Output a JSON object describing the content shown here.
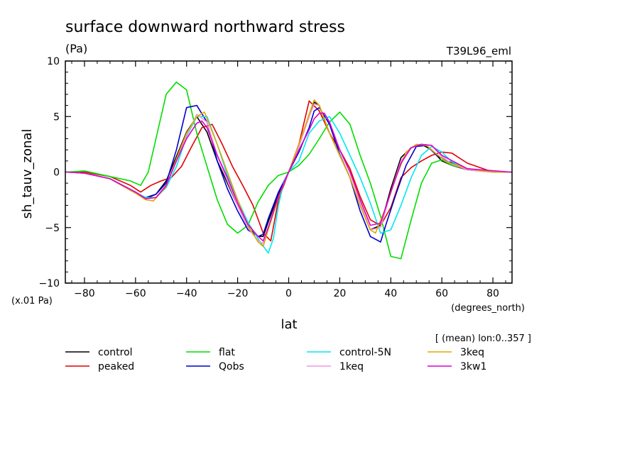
{
  "chart_data": {
    "type": "line",
    "title": "surface downward northward stress",
    "units": "(Pa)",
    "experiment": "T39L96_eml",
    "ylabel": "sh_tauv_zonal",
    "ylabel_scale": "(x.01 Pa)",
    "xlabel": "lat",
    "x_units": "(degrees_north)",
    "averaging_note": "[ (mean) lon:0..357 ]",
    "xlim": [
      -87.5,
      87.5
    ],
    "ylim": [
      -10,
      10
    ],
    "x_ticks": [
      -80,
      -60,
      -40,
      -20,
      0,
      20,
      40,
      60,
      80
    ],
    "x_tick_labels": [
      "−80",
      "−60",
      "−40",
      "−20",
      "0",
      "20",
      "40",
      "60",
      "80"
    ],
    "y_ticks": [
      -10,
      -5,
      0,
      5,
      10
    ],
    "y_tick_labels": [
      "−10",
      "−5",
      "0",
      "5",
      "10"
    ],
    "grid": false,
    "legend_position": "bottom",
    "series": [
      {
        "name": "control",
        "color": "#000000",
        "x": [
          -87,
          -80,
          -70,
          -60,
          -56,
          -52,
          -48,
          -44,
          -40,
          -36,
          -32,
          -28,
          -24,
          -20,
          -16,
          -12,
          -10,
          -8,
          -4,
          0,
          4,
          8,
          10,
          12,
          16,
          20,
          24,
          28,
          32,
          36,
          40,
          44,
          48,
          52,
          56,
          60,
          64,
          70,
          80,
          87
        ],
        "y": [
          0,
          -0.1,
          -0.6,
          -1.8,
          -2.4,
          -2,
          -0.8,
          1.4,
          3.6,
          5,
          3.6,
          1,
          -1,
          -3,
          -5,
          -5.8,
          -5.8,
          -4.5,
          -2,
          0,
          2.5,
          5,
          6.3,
          6,
          3.5,
          1.5,
          -0.5,
          -3,
          -5.2,
          -4.8,
          -1.5,
          1.3,
          2.2,
          2.5,
          2,
          1,
          0.6,
          0.2,
          0,
          0
        ]
      },
      {
        "name": "peaked",
        "color": "#e00000",
        "x": [
          -87,
          -80,
          -70,
          -62,
          -58,
          -54,
          -50,
          -46,
          -42,
          -38,
          -34,
          -30,
          -26,
          -22,
          -18,
          -14,
          -10,
          -7,
          -4,
          0,
          4,
          8,
          12,
          16,
          20,
          24,
          28,
          32,
          36,
          40,
          44,
          48,
          52,
          56,
          60,
          64,
          70,
          80,
          87
        ],
        "y": [
          0,
          0,
          -0.4,
          -1.2,
          -1.8,
          -1.2,
          -0.8,
          -0.5,
          0.5,
          2.3,
          4,
          4.3,
          2.5,
          0.5,
          -1.2,
          -3,
          -5.5,
          -6.2,
          -2.5,
          0,
          2.5,
          6.4,
          5.5,
          3.5,
          2,
          0.3,
          -2.2,
          -4.3,
          -4.8,
          -3.2,
          -0.5,
          0.4,
          1,
          1.5,
          1.8,
          1.7,
          0.8,
          0,
          0
        ]
      },
      {
        "name": "flat",
        "color": "#00dd00",
        "x": [
          -87,
          -80,
          -70,
          -62,
          -58,
          -55,
          -52,
          -48,
          -44,
          -40,
          -36,
          -32,
          -28,
          -24,
          -20,
          -16,
          -12,
          -8,
          -4,
          0,
          4,
          8,
          12,
          16,
          20,
          24,
          28,
          32,
          36,
          40,
          44,
          48,
          52,
          56,
          60,
          64,
          70,
          80,
          87
        ],
        "y": [
          0,
          0.1,
          -0.4,
          -0.8,
          -1.2,
          0,
          3,
          7,
          8.1,
          7.4,
          3.5,
          0.5,
          -2.5,
          -4.7,
          -5.5,
          -4.8,
          -2.7,
          -1.2,
          -0.3,
          0,
          0.6,
          1.6,
          3,
          4.5,
          5.4,
          4.3,
          1.5,
          -1,
          -4,
          -7.6,
          -7.8,
          -4.3,
          -1,
          0.8,
          1.1,
          0.6,
          0.3,
          0,
          0
        ]
      },
      {
        "name": "Qobs",
        "color": "#0000cc",
        "x": [
          -87,
          -80,
          -70,
          -60,
          -56,
          -52,
          -48,
          -44,
          -40,
          -36,
          -32,
          -28,
          -24,
          -20,
          -16,
          -12,
          -10,
          -8,
          -4,
          0,
          4,
          8,
          10,
          12,
          16,
          20,
          24,
          28,
          32,
          36,
          38,
          42,
          46,
          50,
          54,
          58,
          62,
          70,
          80,
          87
        ],
        "y": [
          0,
          -0.1,
          -0.6,
          -1.9,
          -2.3,
          -2,
          -1,
          2,
          5.8,
          6,
          4.5,
          1,
          -1.5,
          -3.5,
          -5.2,
          -5.8,
          -5.6,
          -4.2,
          -1.8,
          0,
          1.8,
          4,
          5.5,
          5.8,
          4.3,
          1.6,
          -0.5,
          -3.5,
          -5.8,
          -6.3,
          -4.8,
          -2,
          0.6,
          2.3,
          2.4,
          1.5,
          1,
          0.3,
          0,
          0
        ]
      },
      {
        "name": "control-5N",
        "color": "#00e8f0",
        "x": [
          -87,
          -80,
          -70,
          -60,
          -56,
          -52,
          -48,
          -44,
          -40,
          -36,
          -32,
          -28,
          -24,
          -20,
          -16,
          -12,
          -8,
          -6,
          -4,
          -2,
          0,
          4,
          8,
          12,
          16,
          20,
          24,
          28,
          32,
          36,
          40,
          44,
          48,
          52,
          56,
          60,
          64,
          70,
          80,
          87
        ],
        "y": [
          0,
          -0.1,
          -0.6,
          -1.8,
          -2.3,
          -2.3,
          -1.4,
          0.5,
          3.2,
          5,
          5,
          2.5,
          -0.3,
          -2.5,
          -4.5,
          -6,
          -7.3,
          -6,
          -3,
          -1,
          0,
          1,
          3.5,
          4.6,
          5,
          3.5,
          1.5,
          -0.5,
          -2.8,
          -5.5,
          -5.2,
          -3,
          -0.5,
          1.5,
          2.3,
          1.8,
          0.9,
          0.3,
          0,
          0
        ]
      },
      {
        "name": "1keq",
        "color": "#ee99dd",
        "x": [
          -87,
          -80,
          -70,
          -60,
          -56,
          -52,
          -48,
          -44,
          -40,
          -36,
          -32,
          -28,
          -24,
          -20,
          -16,
          -12,
          -10,
          -8,
          -4,
          0,
          4,
          8,
          10,
          12,
          16,
          20,
          24,
          28,
          32,
          36,
          40,
          44,
          48,
          52,
          56,
          60,
          64,
          70,
          80,
          87
        ],
        "y": [
          0,
          -0.1,
          -0.6,
          -1.8,
          -2.4,
          -2.3,
          -1.2,
          1,
          3.3,
          5.2,
          4.5,
          1.5,
          -0.8,
          -3,
          -5,
          -6.2,
          -6.4,
          -5,
          -2.2,
          0,
          2.3,
          5,
          6.1,
          6,
          3.5,
          1.5,
          -0.5,
          -2.8,
          -5.2,
          -5,
          -1.8,
          1,
          2.2,
          2.5,
          2.4,
          1.4,
          0.7,
          0.2,
          0,
          0
        ]
      },
      {
        "name": "3keq",
        "color": "#ddaa00",
        "x": [
          -87,
          -80,
          -70,
          -60,
          -56,
          -53,
          -48,
          -44,
          -40,
          -36,
          -33,
          -28,
          -24,
          -20,
          -16,
          -12,
          -10,
          -8,
          -4,
          0,
          4,
          8,
          10,
          12,
          16,
          20,
          24,
          28,
          32,
          34,
          38,
          42,
          46,
          50,
          54,
          58,
          62,
          70,
          80,
          87
        ],
        "y": [
          0,
          -0.1,
          -0.6,
          -1.9,
          -2.5,
          -2.6,
          -1.3,
          1.2,
          3.5,
          5,
          5.4,
          2.5,
          0,
          -2.5,
          -4.8,
          -6.3,
          -6.7,
          -5.2,
          -2.3,
          0,
          2.5,
          5.2,
          6.5,
          6,
          3.5,
          1.5,
          -0.5,
          -3,
          -5.2,
          -5.5,
          -3.2,
          -0.5,
          1.8,
          2.5,
          2.4,
          1.6,
          0.9,
          0.3,
          0,
          0
        ]
      },
      {
        "name": "3kw1",
        "color": "#dd00cc",
        "x": [
          -87,
          -80,
          -70,
          -60,
          -56,
          -52,
          -48,
          -44,
          -40,
          -36,
          -34,
          -32,
          -28,
          -24,
          -20,
          -16,
          -12,
          -10,
          -8,
          -4,
          0,
          4,
          8,
          10,
          12,
          14,
          16,
          20,
          24,
          28,
          32,
          36,
          40,
          44,
          48,
          52,
          56,
          60,
          70,
          87
        ],
        "y": [
          0,
          -0.1,
          -0.6,
          -1.8,
          -2.4,
          -2.3,
          -1.2,
          1,
          3,
          4.4,
          4.6,
          4,
          1.5,
          -0.5,
          -2.8,
          -4.7,
          -5.8,
          -6.2,
          -5,
          -2.2,
          0,
          2,
          3.8,
          4.8,
          5.3,
          5.3,
          4.5,
          2,
          0,
          -2.5,
          -4.8,
          -4.6,
          -1.8,
          0.8,
          2.2,
          2.5,
          2.4,
          1.5,
          0.3,
          0
        ]
      }
    ]
  }
}
